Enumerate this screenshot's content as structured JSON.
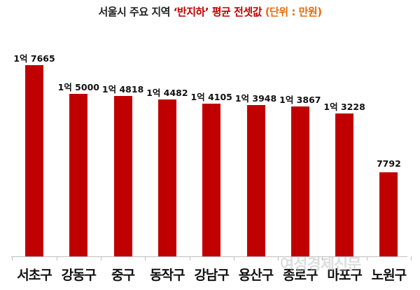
{
  "title": {
    "prefix": "서울시 주요 지역 ",
    "highlight": "‘반지하’ 평균 전셋값",
    "unit": " (단위 : 만원)",
    "colors": {
      "text": "#222222",
      "highlight": "#c00000",
      "unit": "#e46c0a"
    }
  },
  "bar_color": "#c00000",
  "watermark": "여성경제신문",
  "bars": [
    {
      "district": "서초구",
      "label": "1억 7665"
    },
    {
      "district": "강동구",
      "label": "1억 5000"
    },
    {
      "district": "중구",
      "label": "1억 4818"
    },
    {
      "district": "동작구",
      "label": "1억 4482"
    },
    {
      "district": "강남구",
      "label": "1억 4105"
    },
    {
      "district": "용산구",
      "label": "1억 3948"
    },
    {
      "district": "종로구",
      "label": "1억 3867"
    },
    {
      "district": "마포구",
      "label": "1억 3228"
    },
    {
      "district": "노원구",
      "label": "7792"
    }
  ],
  "chart_data": {
    "type": "bar",
    "title": "서울시 주요 지역 ‘반지하’ 평균 전셋값 (단위 : 만원)",
    "xlabel": "",
    "ylabel": "",
    "unit": "만원",
    "categories": [
      "서초구",
      "강동구",
      "중구",
      "동작구",
      "강남구",
      "용산구",
      "종로구",
      "마포구",
      "노원구"
    ],
    "values": [
      17665,
      15000,
      14818,
      14482,
      14105,
      13948,
      13867,
      13228,
      7792
    ],
    "data_labels": [
      "1억 7665",
      "1억 5000",
      "1억 4818",
      "1억 4482",
      "1억 4105",
      "1억 3948",
      "1억 3867",
      "1억 3228",
      "7792"
    ],
    "grid": false,
    "legend": null,
    "y_axis_visible": false
  }
}
